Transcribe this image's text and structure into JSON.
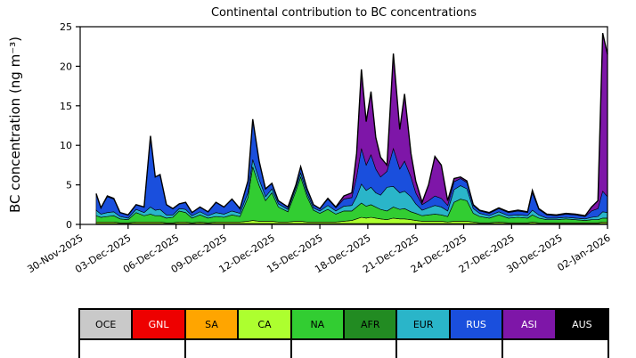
{
  "chart": {
    "title": "Continental contribution to BC concentrations",
    "ylabel": "BC concentration (ng m⁻³)"
  },
  "chart_data": {
    "type": "area",
    "stacked": true,
    "title": "Continental contribution to BC concentrations",
    "xlabel": "",
    "ylabel": "BC concentration (ng m⁻³)",
    "ylim": [
      0,
      25
    ],
    "xlim": [
      0,
      33
    ],
    "yticks": [
      0,
      5,
      10,
      15,
      20,
      25
    ],
    "xticks": [
      0,
      3,
      6,
      9,
      12,
      15,
      18,
      21,
      24,
      27,
      30,
      33
    ],
    "xtick_labels": [
      "30-Nov-2025",
      "03-Dec-2025",
      "06-Dec-2025",
      "09-Dec-2025",
      "12-Dec-2025",
      "15-Dec-2025",
      "18-Dec-2025",
      "21-Dec-2025",
      "24-Dec-2025",
      "27-Dec-2025",
      "30-Dec-2025",
      "02-Jan-2026"
    ],
    "x_unit": "days since 30-Nov-2025",
    "grid": false,
    "outline_color": "#000000",
    "x": [
      1.0,
      1.3,
      1.7,
      2.1,
      2.5,
      3.0,
      3.5,
      4.0,
      4.4,
      4.7,
      5.0,
      5.4,
      5.8,
      6.2,
      6.6,
      7.0,
      7.5,
      8.0,
      8.5,
      9.0,
      9.5,
      10.0,
      10.5,
      10.8,
      11.2,
      11.6,
      12.0,
      12.4,
      13.0,
      13.5,
      13.8,
      14.2,
      14.6,
      15.0,
      15.5,
      16.0,
      16.5,
      17.0,
      17.3,
      17.6,
      17.9,
      18.2,
      18.5,
      18.8,
      19.2,
      19.6,
      20.0,
      20.3,
      20.7,
      21.0,
      21.4,
      21.8,
      22.2,
      22.6,
      23.0,
      23.4,
      23.8,
      24.2,
      24.6,
      25.0,
      25.6,
      26.2,
      26.8,
      27.4,
      28.0,
      28.3,
      28.7,
      29.2,
      29.8,
      30.4,
      31.0,
      31.6,
      32.0,
      32.4,
      32.7,
      33.0
    ],
    "series": [
      {
        "name": "OCE",
        "color": "#c9c9c9",
        "values": [
          0.1,
          0.1,
          0.1,
          0.1,
          0.1,
          0.1,
          0.1,
          0.1,
          0.1,
          0.1,
          0.1,
          0.1,
          0.1,
          0.1,
          0.1,
          0.1,
          0.1,
          0.1,
          0.1,
          0.1,
          0.1,
          0.1,
          0.1,
          0.1,
          0.1,
          0.1,
          0.1,
          0.1,
          0.1,
          0.1,
          0.1,
          0.1,
          0.1,
          0.1,
          0.1,
          0.1,
          0.1,
          0.1,
          0.1,
          0.1,
          0.1,
          0.1,
          0.1,
          0.1,
          0.1,
          0.1,
          0.1,
          0.1,
          0.1,
          0.1,
          0.1,
          0.1,
          0.1,
          0.1,
          0.1,
          0.1,
          0.1,
          0.1,
          0.1,
          0.1,
          0.1,
          0.1,
          0.1,
          0.1,
          0.1,
          0.1,
          0.1,
          0.1,
          0.1,
          0.1,
          0.1,
          0.1,
          0.1,
          0.1,
          0.1,
          0.1
        ]
      },
      {
        "name": "CA",
        "color": "#adff2f",
        "values": [
          0.2,
          0.2,
          0.2,
          0.2,
          0.1,
          0.1,
          0.2,
          0.2,
          0.2,
          0.2,
          0.2,
          0.1,
          0.1,
          0.2,
          0.2,
          0.1,
          0.2,
          0.1,
          0.2,
          0.2,
          0.2,
          0.2,
          0.3,
          0.4,
          0.3,
          0.3,
          0.3,
          0.2,
          0.2,
          0.3,
          0.3,
          0.2,
          0.2,
          0.2,
          0.2,
          0.2,
          0.3,
          0.4,
          0.6,
          0.8,
          0.7,
          0.8,
          0.7,
          0.6,
          0.5,
          0.7,
          0.6,
          0.6,
          0.5,
          0.4,
          0.3,
          0.3,
          0.3,
          0.3,
          0.2,
          0.3,
          0.3,
          0.3,
          0.2,
          0.1,
          0.1,
          0.2,
          0.1,
          0.1,
          0.1,
          0.2,
          0.1,
          0.1,
          0.1,
          0.1,
          0.1,
          0.1,
          0.1,
          0.1,
          0.2,
          0.2
        ]
      },
      {
        "name": "NA",
        "color": "#32cd32",
        "values": [
          0.8,
          0.6,
          0.7,
          0.8,
          0.5,
          0.4,
          1.2,
          0.8,
          1.0,
          0.8,
          0.8,
          0.6,
          0.7,
          1.4,
          1.2,
          0.6,
          0.9,
          0.6,
          0.7,
          0.6,
          0.9,
          0.7,
          3.0,
          6.8,
          4.5,
          2.6,
          3.6,
          1.9,
          1.3,
          3.8,
          5.6,
          3.2,
          1.5,
          1.1,
          1.6,
          1.0,
          1.3,
          1.2,
          1.5,
          1.8,
          1.5,
          1.6,
          1.4,
          1.2,
          1.1,
          1.4,
          1.2,
          1.3,
          1.0,
          0.9,
          0.7,
          0.8,
          0.9,
          0.8,
          0.7,
          2.4,
          2.8,
          2.6,
          1.1,
          0.8,
          0.6,
          0.9,
          0.6,
          0.7,
          0.6,
          0.9,
          0.6,
          0.4,
          0.4,
          0.5,
          0.4,
          0.3,
          0.4,
          0.4,
          0.5,
          0.5
        ]
      },
      {
        "name": "EUR",
        "color": "#2ab5c9",
        "values": [
          0.7,
          0.4,
          0.5,
          0.5,
          0.3,
          0.2,
          0.4,
          0.4,
          0.9,
          0.7,
          0.8,
          0.4,
          0.3,
          0.3,
          0.4,
          0.3,
          0.4,
          0.3,
          0.5,
          0.4,
          0.5,
          0.4,
          0.6,
          0.9,
          0.8,
          0.5,
          0.5,
          0.4,
          0.3,
          0.4,
          0.5,
          0.4,
          0.3,
          0.3,
          0.5,
          0.4,
          0.6,
          0.7,
          1.3,
          2.4,
          2.0,
          2.2,
          1.8,
          1.8,
          3.0,
          2.6,
          2.1,
          2.2,
          1.9,
          1.2,
          0.7,
          0.9,
          1.1,
          1.0,
          0.7,
          1.6,
          1.7,
          1.5,
          0.6,
          0.4,
          0.3,
          0.4,
          0.3,
          0.3,
          0.3,
          0.6,
          0.4,
          0.2,
          0.2,
          0.2,
          0.2,
          0.2,
          0.3,
          0.4,
          0.8,
          0.7
        ]
      },
      {
        "name": "RUS",
        "color": "#1a4fdd",
        "values": [
          2.0,
          0.8,
          2.0,
          1.6,
          0.5,
          0.4,
          0.6,
          0.7,
          9.0,
          4.2,
          4.4,
          1.3,
          0.8,
          0.6,
          0.9,
          0.4,
          0.6,
          0.5,
          1.3,
          0.9,
          1.5,
          0.6,
          1.5,
          5.1,
          2.3,
          1.0,
          0.7,
          0.4,
          0.3,
          0.4,
          0.8,
          0.6,
          0.4,
          0.3,
          0.8,
          0.4,
          0.9,
          1.0,
          2.5,
          4.5,
          3.2,
          4.1,
          3.0,
          2.3,
          2.0,
          4.8,
          3.0,
          3.8,
          2.5,
          1.4,
          0.7,
          0.9,
          1.2,
          1.1,
          0.7,
          1.0,
          0.9,
          0.8,
          0.4,
          0.3,
          0.3,
          0.4,
          0.4,
          0.5,
          0.4,
          2.2,
          0.7,
          0.4,
          0.3,
          0.4,
          0.4,
          0.3,
          0.8,
          1.0,
          2.6,
          2.0
        ]
      },
      {
        "name": "ASI",
        "color": "#7e16a8",
        "values": [
          0.1,
          0.0,
          0.1,
          0.1,
          0.0,
          0.0,
          0.0,
          0.0,
          0.0,
          0.0,
          0.0,
          0.0,
          0.0,
          0.0,
          0.0,
          0.0,
          0.0,
          0.0,
          0.0,
          0.0,
          0.0,
          0.0,
          0.0,
          0.0,
          0.0,
          0.0,
          0.0,
          0.0,
          0.0,
          0.0,
          0.0,
          0.0,
          0.0,
          0.0,
          0.1,
          0.1,
          0.4,
          0.6,
          3.0,
          10.0,
          5.5,
          8.0,
          4.0,
          2.5,
          0.8,
          12.0,
          5.0,
          8.5,
          3.0,
          1.5,
          0.3,
          2.0,
          5.0,
          4.2,
          0.6,
          0.4,
          0.2,
          0.2,
          0.1,
          0.1,
          0.1,
          0.1,
          0.1,
          0.1,
          0.1,
          0.3,
          0.1,
          0.1,
          0.1,
          0.1,
          0.1,
          0.1,
          0.5,
          1.0,
          20.0,
          18.0
        ]
      }
    ]
  },
  "legend": {
    "entries": [
      {
        "label": "OCE",
        "color": "#c9c9c9",
        "text_color": "#000000"
      },
      {
        "label": "GNL",
        "color": "#ee0000",
        "text_color": "#ffffff"
      },
      {
        "label": "SA",
        "color": "#ffa500",
        "text_color": "#000000"
      },
      {
        "label": "CA",
        "color": "#adff2f",
        "text_color": "#000000"
      },
      {
        "label": "NA",
        "color": "#32cd32",
        "text_color": "#000000"
      },
      {
        "label": "AFR",
        "color": "#228b22",
        "text_color": "#000000"
      },
      {
        "label": "EUR",
        "color": "#2ab5c9",
        "text_color": "#000000"
      },
      {
        "label": "RUS",
        "color": "#1a4fdd",
        "text_color": "#ffffff"
      },
      {
        "label": "ASI",
        "color": "#7e16a8",
        "text_color": "#ffffff"
      },
      {
        "label": "AUS",
        "color": "#000000",
        "text_color": "#ffffff"
      }
    ]
  }
}
